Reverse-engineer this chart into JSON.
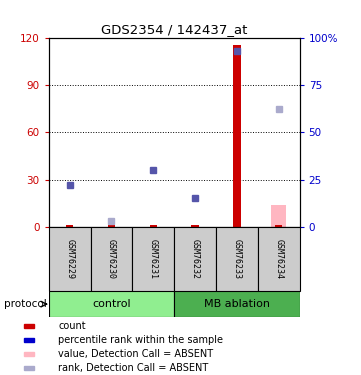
{
  "title": "GDS2354 / 142437_at",
  "samples": [
    "GSM76229",
    "GSM76230",
    "GSM76231",
    "GSM76232",
    "GSM76233",
    "GSM76234"
  ],
  "groups": {
    "control": [
      0,
      1,
      2
    ],
    "MB ablation": [
      3,
      4,
      5
    ]
  },
  "ylim_left": [
    0,
    120
  ],
  "ylim_right": [
    0,
    100
  ],
  "yticks_left": [
    0,
    30,
    60,
    90,
    120
  ],
  "yticks_right": [
    0,
    25,
    50,
    75,
    100
  ],
  "yticklabels_right": [
    "0",
    "25",
    "50",
    "75",
    "100%"
  ],
  "count_values": [
    1,
    1,
    1,
    1,
    115,
    1
  ],
  "count_color": "#CC0000",
  "rank_present_values": [
    22,
    null,
    30,
    15,
    93,
    null
  ],
  "rank_absent_values": [
    null,
    3,
    null,
    null,
    null,
    62
  ],
  "rank_present_color": "#5555AA",
  "rank_absent_color": "#AAAACC",
  "value_absent_values": [
    null,
    null,
    null,
    null,
    null,
    14
  ],
  "value_absent_color": "#FFB6C1",
  "background_color": "#ffffff",
  "plot_bg": "#ffffff",
  "left_yaxis_color": "#CC0000",
  "right_yaxis_color": "#0000CC",
  "control_color": "#90EE90",
  "mb_color": "#4CAF50",
  "sample_box_color": "#CCCCCC",
  "legend_items": [
    {
      "label": "count",
      "color": "#CC0000"
    },
    {
      "label": "percentile rank within the sample",
      "color": "#0000CC"
    },
    {
      "label": "value, Detection Call = ABSENT",
      "color": "#FFB6C1"
    },
    {
      "label": "rank, Detection Call = ABSENT",
      "color": "#AAAACC"
    }
  ]
}
